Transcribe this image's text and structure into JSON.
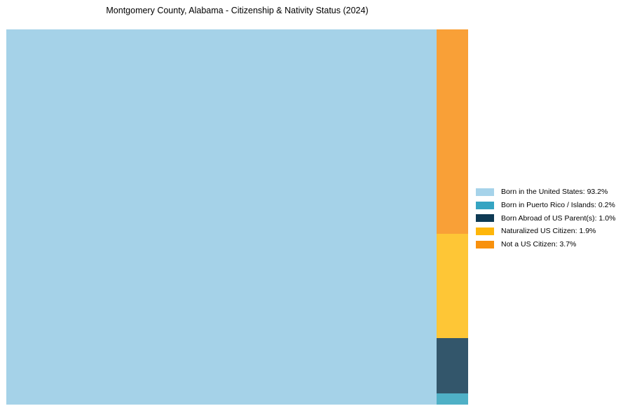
{
  "title": "Montgomery County, Alabama - Citizenship & Nativity Status (2024)",
  "chart_data": {
    "type": "treemap",
    "title": "Montgomery County, Alabama - Citizenship & Nativity Status (2024)",
    "categories": [
      "Born in the United States",
      "Born in Puerto Rico / Islands",
      "Born Abroad of US Parent(s)",
      "Naturalized US Citizen",
      "Not a US Citizen"
    ],
    "values": [
      93.2,
      0.2,
      1.0,
      1.9,
      3.7
    ],
    "unit": "%",
    "colors": [
      "#A5D2E8",
      "#4FB0C6",
      "#33566B",
      "#FEC636",
      "#F9A037"
    ],
    "legend_position": "right",
    "layout_hint": "largest category fills left block; remaining categories stacked top-to-bottom in descending order in right column; no axes, no gridlines, no labels inside blocks"
  },
  "legend": {
    "items": [
      {
        "label": "Born in the United States: 93.2%",
        "color": "#A6D3EA"
      },
      {
        "label": "Born in Puerto Rico / Islands: 0.2%",
        "color": "#35A4C2"
      },
      {
        "label": "Born Abroad of US Parent(s): 1.0%",
        "color": "#0E3A54"
      },
      {
        "label": "Naturalized US Citizen: 1.9%",
        "color": "#FEB60A"
      },
      {
        "label": "Not a US Citizen: 3.7%",
        "color": "#F8910D"
      }
    ]
  }
}
